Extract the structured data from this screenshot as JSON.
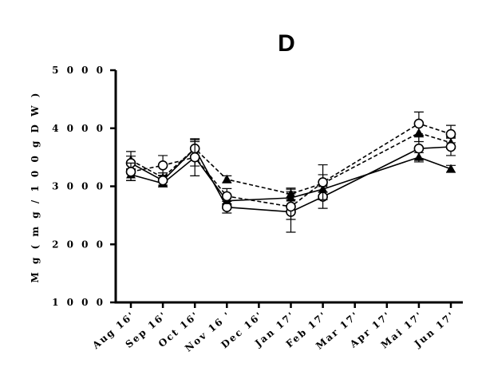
{
  "chart_data": {
    "type": "line",
    "title": "D",
    "ylabel": "M g ( m g / 1 0 0 g D W )",
    "xlabel": "",
    "ylim": [
      1000,
      5000
    ],
    "yticks": [
      1000,
      2000,
      3000,
      4000,
      5000
    ],
    "ytick_labels": [
      "1 0 0 0",
      "2 0 0 0",
      "3 0 0 0",
      "4 0 0 0",
      "5 0 0 0"
    ],
    "categories": [
      "Aug 16'",
      "Sep 16'",
      "Oct 16'",
      "Nov 16 '",
      "Dec 16'",
      "Jan 17'",
      "Feb 17'",
      "Mar 17'",
      "Apr 17'",
      "Mai 17'",
      "Jun 17'"
    ],
    "grid": false,
    "legend": "none",
    "series": [
      {
        "marker": "triangle-filled",
        "dash": "solid",
        "values": [
          3200,
          3050,
          3500,
          2750,
          null,
          2800,
          2950,
          null,
          null,
          3500,
          3300
        ],
        "errors": [
          100,
          60,
          150,
          70,
          null,
          150,
          100,
          null,
          null,
          80,
          60
        ]
      },
      {
        "marker": "triangle-filled",
        "dash": "dashed",
        "values": [
          3450,
          3150,
          3650,
          3120,
          null,
          2870,
          3050,
          null,
          null,
          3920,
          3750
        ],
        "errors": [
          150,
          80,
          120,
          60,
          null,
          100,
          150,
          null,
          null,
          150,
          100
        ]
      },
      {
        "marker": "circle-open",
        "dash": "solid",
        "values": [
          3400,
          3100,
          3650,
          2640,
          null,
          2560,
          2820,
          null,
          null,
          3650,
          3680
        ],
        "errors": [
          120,
          80,
          150,
          100,
          null,
          350,
          200,
          null,
          null,
          200,
          150
        ]
      },
      {
        "marker": "circle-open",
        "dash": "dashed",
        "values": [
          3250,
          3360,
          3500,
          2830,
          null,
          2650,
          3070,
          null,
          null,
          4080,
          3900
        ],
        "errors": [
          150,
          170,
          320,
          130,
          null,
          220,
          300,
          null,
          null,
          200,
          150
        ]
      }
    ]
  }
}
